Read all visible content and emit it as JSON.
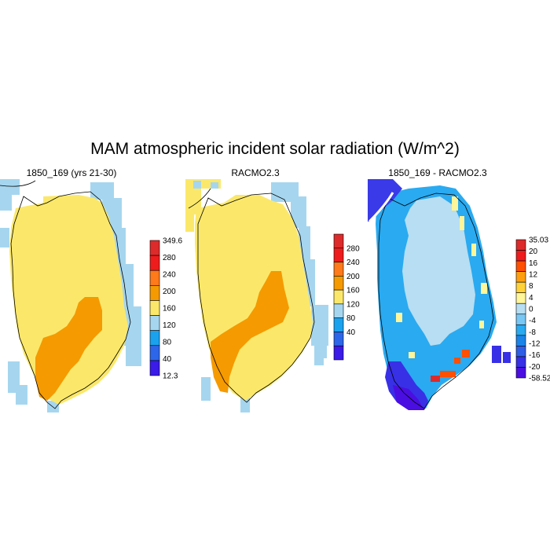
{
  "title": "MAM atmospheric incident solar radiation (W/m^2)",
  "panels": [
    {
      "title": "1850_169 (yrs 21-30)",
      "colorbar": {
        "labels": [
          "349.6",
          "280",
          "240",
          "200",
          "160",
          "120",
          "80",
          "40",
          "12.3"
        ],
        "colors": [
          "#dd2b2b",
          "#ee1c1c",
          "#ff7a1a",
          "#f59a00",
          "#fbe86a",
          "#a6d6ef",
          "#1aa2ef",
          "#2d66e8",
          "#3a1be8"
        ]
      }
    },
    {
      "title": "RACMO2.3",
      "colorbar": {
        "labels": [
          "280",
          "240",
          "200",
          "160",
          "120",
          "80",
          "40"
        ],
        "colors": [
          "#dd2b2b",
          "#ee1c1c",
          "#ff7a1a",
          "#f59a00",
          "#fbe86a",
          "#a6d6ef",
          "#1aa2ef",
          "#2d66e8",
          "#3a1be8"
        ]
      }
    },
    {
      "title": "1850_169 - RACMO2.3",
      "colorbar": {
        "labels": [
          "35.03",
          "20",
          "16",
          "12",
          "8",
          "4",
          "0",
          "-4",
          "-8",
          "-12",
          "-16",
          "-20",
          "-58.52"
        ],
        "colors": [
          "#dd2b2b",
          "#ee1c1c",
          "#ff4f00",
          "#ff9f10",
          "#ffd23a",
          "#fff59a",
          "#b7def2",
          "#78c7f5",
          "#2aaaf0",
          "#1a84e8",
          "#2f5ee6",
          "#3830e6",
          "#4a0ee2"
        ]
      }
    }
  ],
  "colors": {
    "ocean_edge": "#a6d6ef",
    "ice_yellow": "#fbe86a",
    "ice_orange": "#f59a00",
    "diff_light": "#b7def2",
    "diff_mid": "#2aaaf0"
  }
}
